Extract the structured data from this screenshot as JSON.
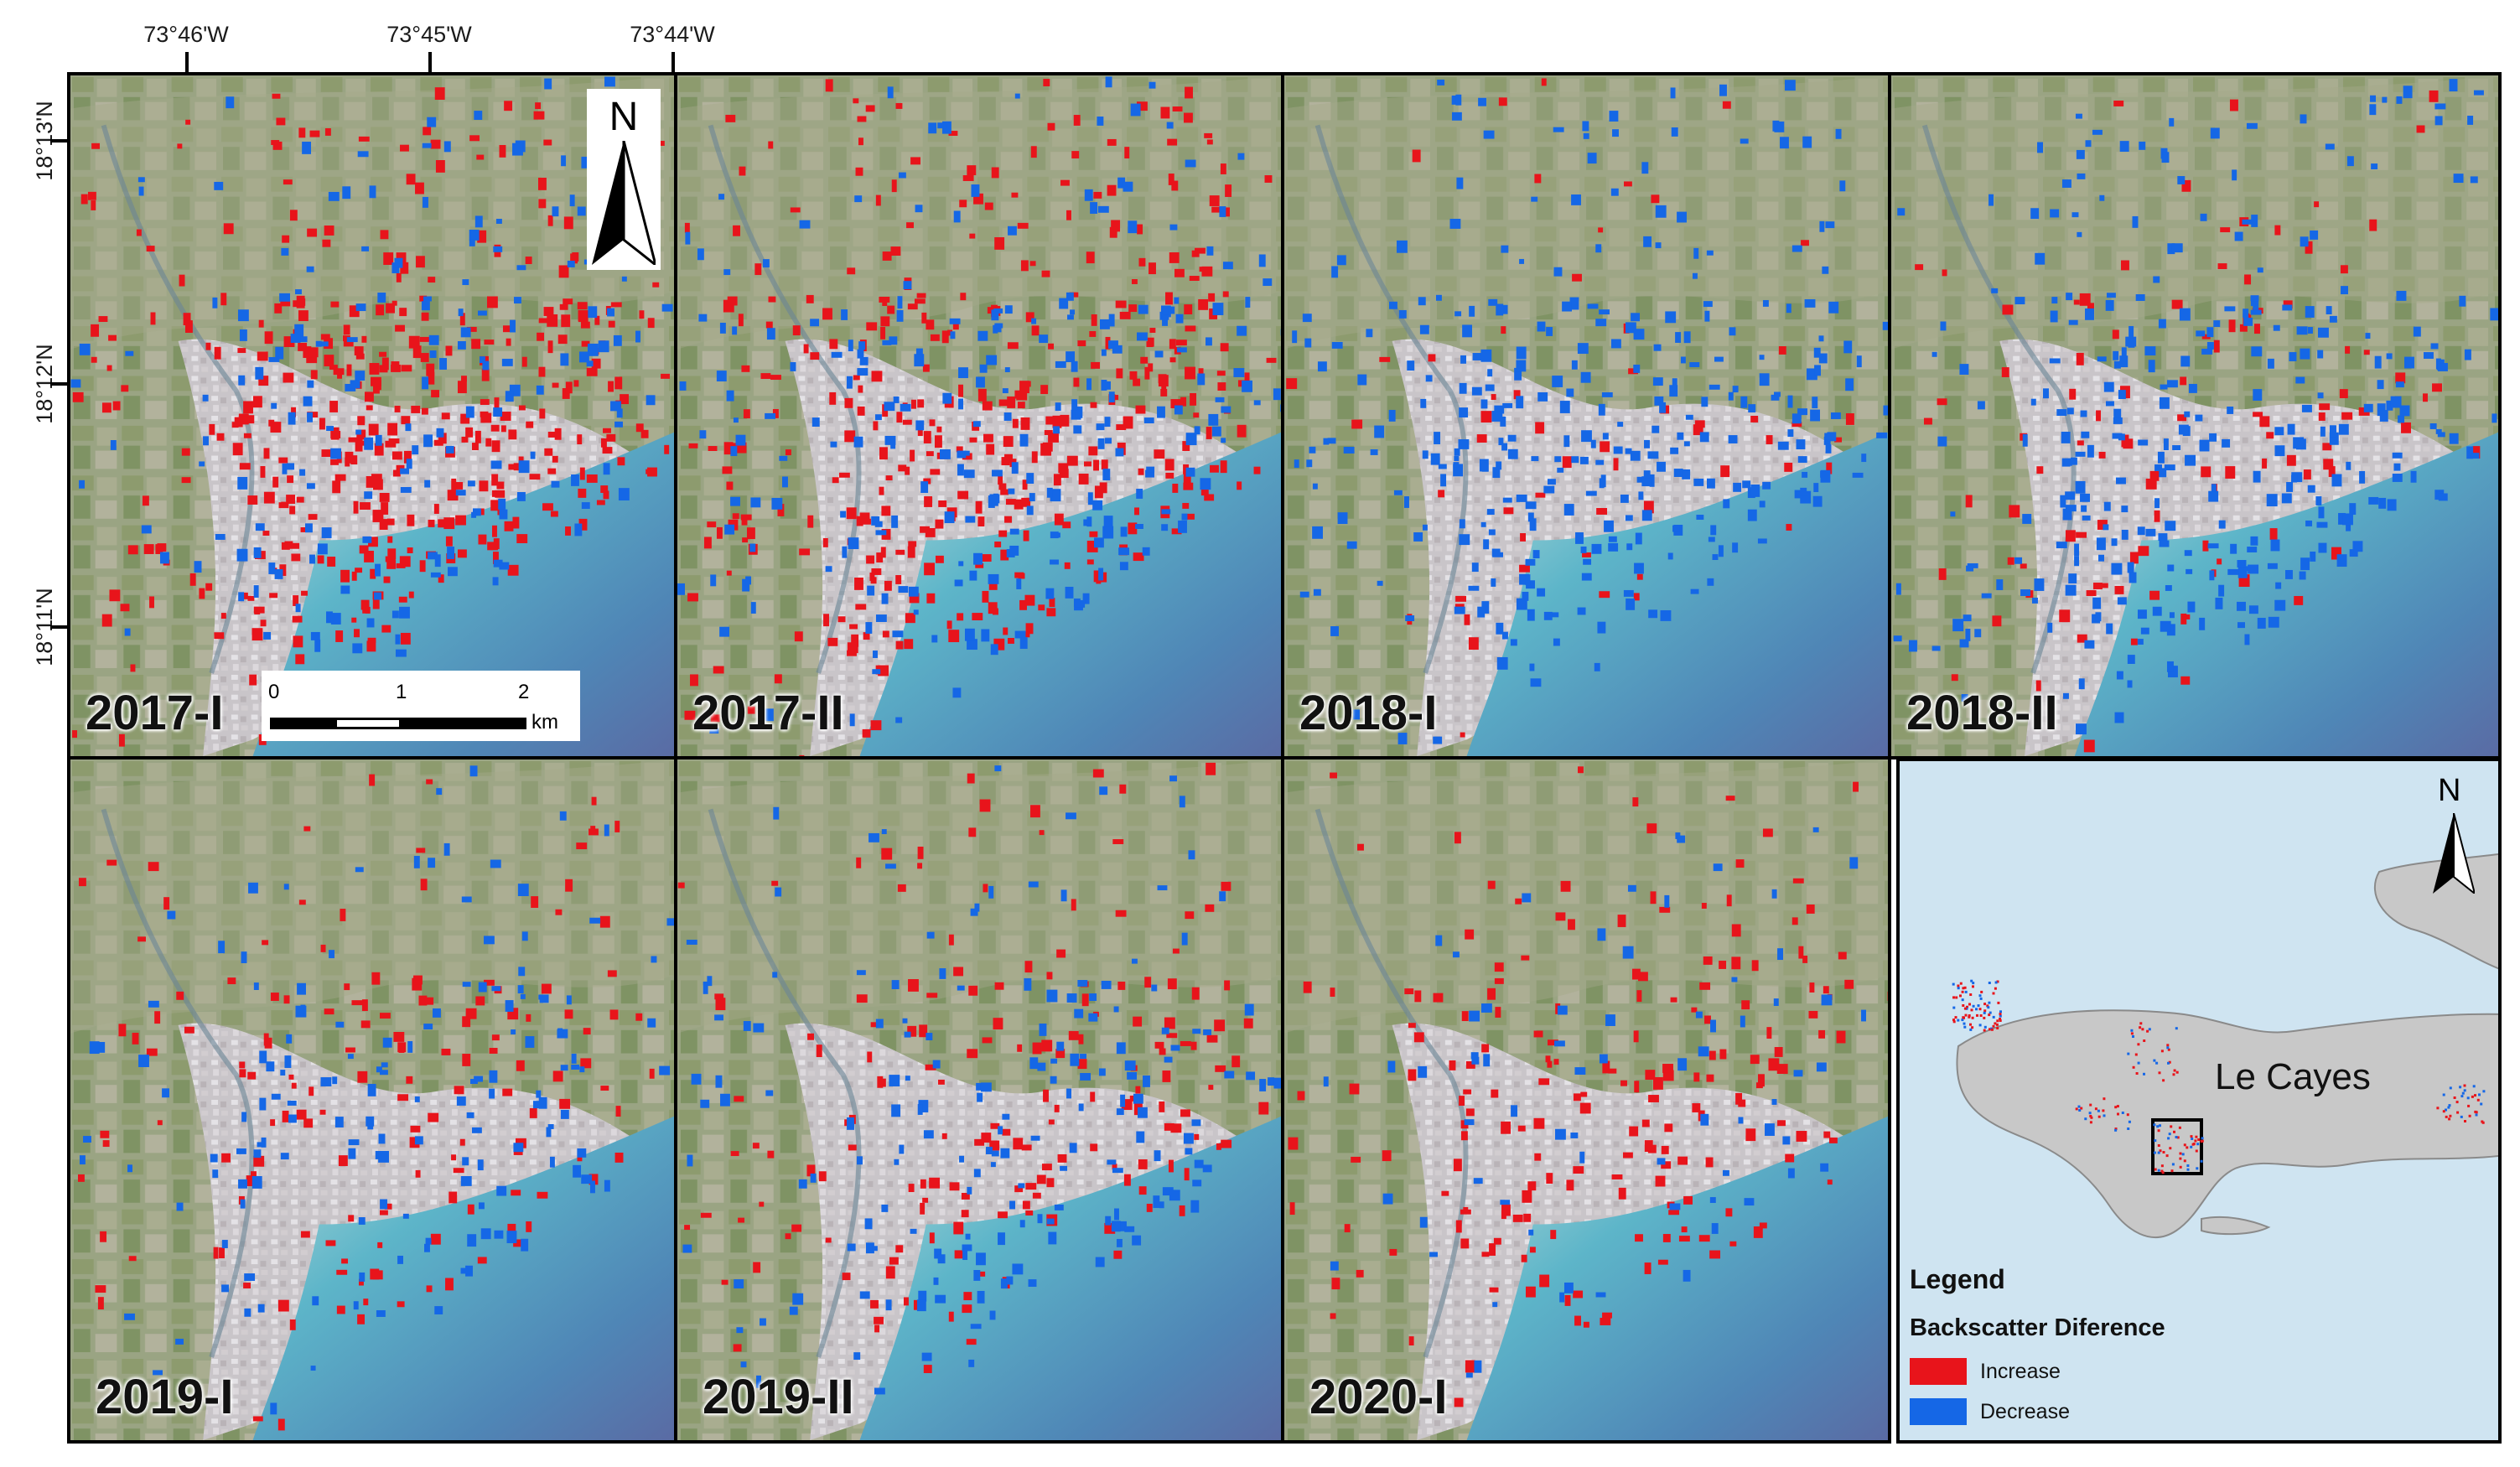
{
  "coordinates": {
    "longitude": [
      "73°46'W",
      "73°45'W",
      "73°44'W"
    ],
    "latitude": [
      "18°13'N",
      "18°12'N",
      "18°11'N"
    ]
  },
  "panels": [
    {
      "id": "2017-I",
      "label": "2017-I",
      "red": 420,
      "blue": 190
    },
    {
      "id": "2017-II",
      "label": "2017-II",
      "red": 400,
      "blue": 260
    },
    {
      "id": "2018-I",
      "label": "2018-I",
      "red": 55,
      "blue": 330
    },
    {
      "id": "2018-II",
      "label": "2018-II",
      "red": 110,
      "blue": 330
    },
    {
      "id": "2019-I",
      "label": "2019-I",
      "red": 150,
      "blue": 150
    },
    {
      "id": "2019-II",
      "label": "2019-II",
      "red": 170,
      "blue": 180
    },
    {
      "id": "2020-I",
      "label": "2020-I",
      "red": 190,
      "blue": 70
    }
  ],
  "north_arrow": "N",
  "scale_bar": {
    "ticks": [
      "0",
      "1",
      "2"
    ],
    "unit": "km"
  },
  "inset": {
    "town": "Le Cayes",
    "north": "N"
  },
  "legend": {
    "title": "Legend",
    "subtitle": "Backscatter Diference",
    "items": [
      {
        "label": "Increase",
        "color": "#e8141b"
      },
      {
        "label": "Decrease",
        "color": "#1567e6"
      }
    ]
  },
  "colors": {
    "increase": "#e8141b",
    "decrease": "#1567e6",
    "sea": "#4aa3c4",
    "inset_sea": "#cfe4f1",
    "land": "#c8c8c8"
  }
}
